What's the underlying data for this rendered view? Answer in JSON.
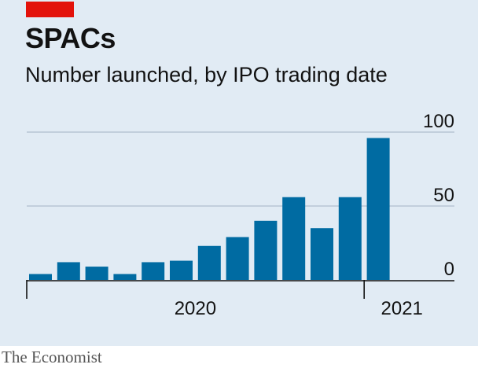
{
  "header": {
    "title": "SPACs",
    "subtitle": "Number launched, by IPO trading date"
  },
  "footer": {
    "source": "The Economist"
  },
  "colors": {
    "bar": "#006ba2",
    "accent": "#e3120b",
    "grid": "#b7c6d3",
    "axis": "#121212"
  },
  "chart_data": {
    "type": "bar",
    "title": "SPACs",
    "subtitle": "Number launched, by IPO trading date",
    "xlabel": "",
    "ylabel": "",
    "categories": [
      "2020-01",
      "2020-02",
      "2020-03",
      "2020-04",
      "2020-05",
      "2020-06",
      "2020-07",
      "2020-08",
      "2020-09",
      "2020-10",
      "2020-11",
      "2020-12",
      "2021-01"
    ],
    "values": [
      4,
      12,
      9,
      4,
      12,
      13,
      23,
      29,
      40,
      56,
      35,
      56,
      96
    ],
    "ylim": [
      0,
      100
    ],
    "yticks": [
      0,
      50,
      100
    ],
    "year_labels": [
      "2020",
      "2021"
    ],
    "grid": true,
    "y_axis_side": "right"
  }
}
